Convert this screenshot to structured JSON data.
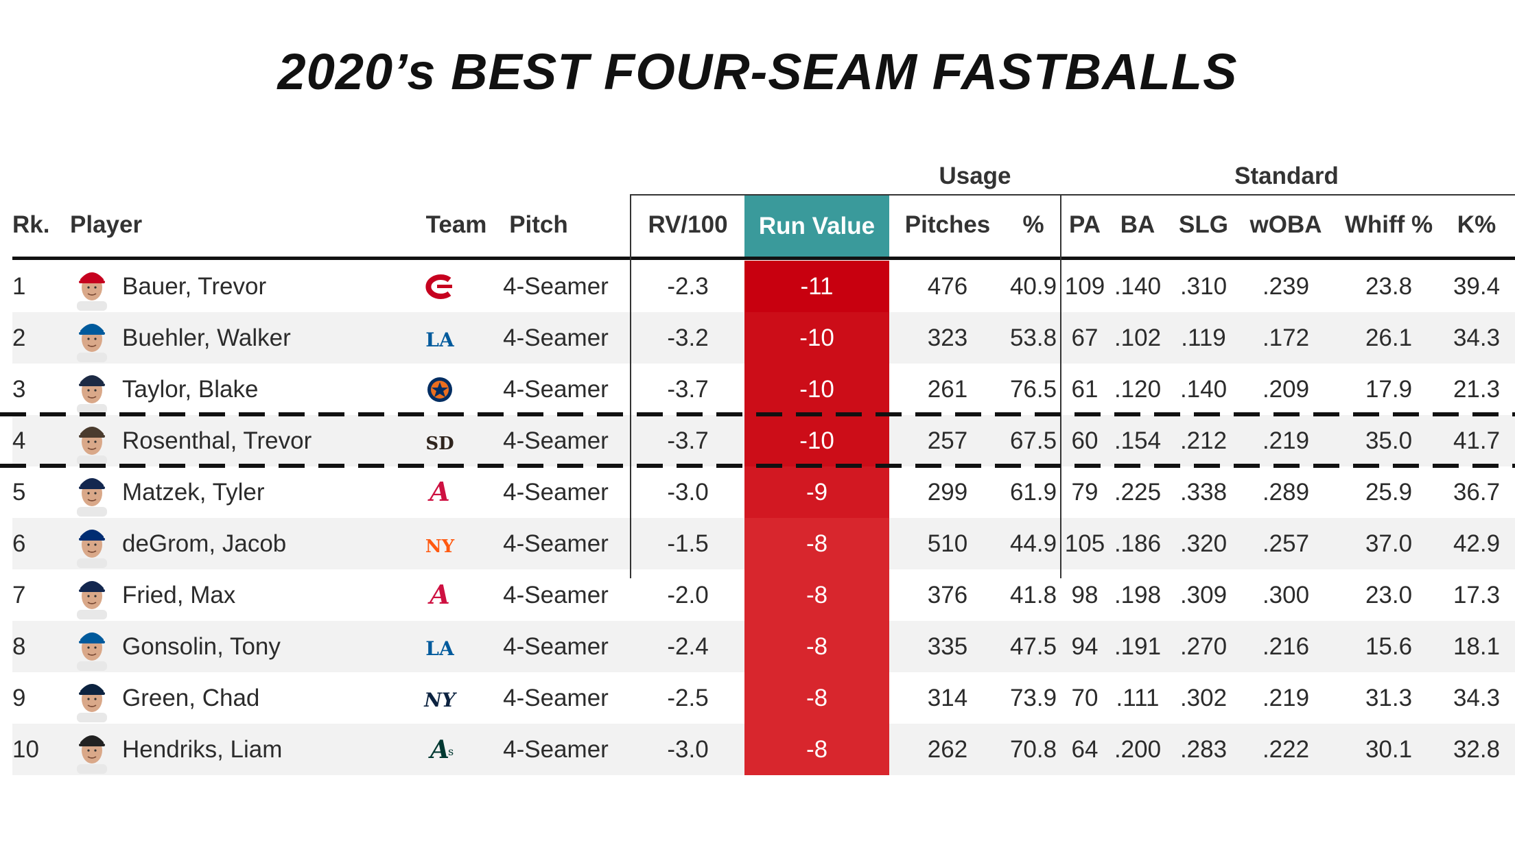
{
  "title": "2020’s BEST FOUR-SEAM FASTBALLS",
  "chart_data": {
    "type": "table",
    "group_headers": {
      "usage": "Usage",
      "standard": "Standard"
    },
    "columns": {
      "rank": "Rk.",
      "player": "Player",
      "team": "Team",
      "pitch": "Pitch",
      "rv100": "RV/100",
      "run_value": "Run Value",
      "pitches": "Pitches",
      "pct": "%",
      "pa": "PA",
      "ba": "BA",
      "slg": "SLG",
      "woba": "wOBA",
      "whiff": "Whiff %",
      "k": "K%"
    },
    "highlighted_row": 4,
    "run_value_colors": {
      "-11": "#c8000f",
      "-10": "#cc0d18",
      "-9": "#d21822",
      "-8": "#d8262d"
    },
    "rows": [
      {
        "rank": "1",
        "player": "Bauer, Trevor",
        "team_icon": "reds-c-logo-icon",
        "team_color": "#c6011f",
        "pitch": "4-Seamer",
        "rv100": "-2.3",
        "run_value": "-11",
        "pitches": "476",
        "pct": "40.9",
        "pa": "109",
        "ba": ".140",
        "slg": ".310",
        "woba": ".239",
        "whiff": "23.8",
        "k": "39.4",
        "cap": "#c6011f"
      },
      {
        "rank": "2",
        "player": "Buehler, Walker",
        "team_icon": "dodgers-la-logo-icon",
        "team_color": "#005a9c",
        "pitch": "4-Seamer",
        "rv100": "-3.2",
        "run_value": "-10",
        "pitches": "323",
        "pct": "53.8",
        "pa": "67",
        "ba": ".102",
        "slg": ".119",
        "woba": ".172",
        "whiff": "26.1",
        "k": "34.3",
        "cap": "#005a9c"
      },
      {
        "rank": "3",
        "player": "Taylor, Blake",
        "team_icon": "astros-star-logo-icon",
        "team_color": "#002d62",
        "pitch": "4-Seamer",
        "rv100": "-3.7",
        "run_value": "-10",
        "pitches": "261",
        "pct": "76.5",
        "pa": "61",
        "ba": ".120",
        "slg": ".140",
        "woba": ".209",
        "whiff": "17.9",
        "k": "21.3",
        "cap": "#1c2a44"
      },
      {
        "rank": "4",
        "player": "Rosenthal, Trevor",
        "team_icon": "padres-sd-logo-icon",
        "team_color": "#2f241d",
        "pitch": "4-Seamer",
        "rv100": "-3.7",
        "run_value": "-10",
        "pitches": "257",
        "pct": "67.5",
        "pa": "60",
        "ba": ".154",
        "slg": ".212",
        "woba": ".219",
        "whiff": "35.0",
        "k": "41.7",
        "cap": "#4a3b2e"
      },
      {
        "rank": "5",
        "player": "Matzek, Tyler",
        "team_icon": "braves-a-logo-icon",
        "team_color": "#ce1141",
        "pitch": "4-Seamer",
        "rv100": "-3.0",
        "run_value": "-9",
        "pitches": "299",
        "pct": "61.9",
        "pa": "79",
        "ba": ".225",
        "slg": ".338",
        "woba": ".289",
        "whiff": "25.9",
        "k": "36.7",
        "cap": "#13274f"
      },
      {
        "rank": "6",
        "player": "deGrom, Jacob",
        "team_icon": "mets-ny-logo-icon",
        "team_color": "#ff5910",
        "pitch": "4-Seamer",
        "rv100": "-1.5",
        "run_value": "-8",
        "pitches": "510",
        "pct": "44.9",
        "pa": "105",
        "ba": ".186",
        "slg": ".320",
        "woba": ".257",
        "whiff": "37.0",
        "k": "42.9",
        "cap": "#002d72"
      },
      {
        "rank": "7",
        "player": "Fried, Max",
        "team_icon": "braves-a-logo-icon",
        "team_color": "#ce1141",
        "pitch": "4-Seamer",
        "rv100": "-2.0",
        "run_value": "-8",
        "pitches": "376",
        "pct": "41.8",
        "pa": "98",
        "ba": ".198",
        "slg": ".309",
        "woba": ".300",
        "whiff": "23.0",
        "k": "17.3",
        "cap": "#13274f"
      },
      {
        "rank": "8",
        "player": "Gonsolin, Tony",
        "team_icon": "dodgers-la-logo-icon",
        "team_color": "#005a9c",
        "pitch": "4-Seamer",
        "rv100": "-2.4",
        "run_value": "-8",
        "pitches": "335",
        "pct": "47.5",
        "pa": "94",
        "ba": ".191",
        "slg": ".270",
        "woba": ".216",
        "whiff": "15.6",
        "k": "18.1",
        "cap": "#005a9c"
      },
      {
        "rank": "9",
        "player": "Green, Chad",
        "team_icon": "yankees-ny-logo-icon",
        "team_color": "#0c2340",
        "pitch": "4-Seamer",
        "rv100": "-2.5",
        "run_value": "-8",
        "pitches": "314",
        "pct": "73.9",
        "pa": "70",
        "ba": ".111",
        "slg": ".302",
        "woba": ".219",
        "whiff": "31.3",
        "k": "34.3",
        "cap": "#0c2340"
      },
      {
        "rank": "10",
        "player": "Hendriks, Liam",
        "team_icon": "athletics-a-logo-icon",
        "team_color": "#003831",
        "pitch": "4-Seamer",
        "rv100": "-3.0",
        "run_value": "-8",
        "pitches": "262",
        "pct": "70.8",
        "pa": "64",
        "ba": ".200",
        "slg": ".283",
        "woba": ".222",
        "whiff": "30.1",
        "k": "32.8",
        "cap": "#222222"
      }
    ]
  }
}
